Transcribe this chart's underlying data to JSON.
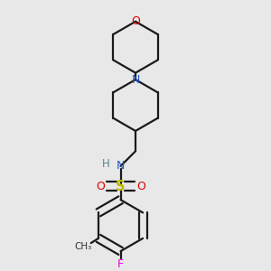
{
  "bg_color": "#e8e8e8",
  "bond_color": "#1a1a1a",
  "N_color": "#2255cc",
  "O_color": "#dd0000",
  "S_color": "#bbbb00",
  "F_color": "#ee00ee",
  "H_color": "#558888",
  "Me_color": "#333333",
  "line_width": 1.6,
  "fig_w": 3.0,
  "fig_h": 3.0,
  "dpi": 100,
  "xlim": [
    0.15,
    0.85
  ],
  "ylim": [
    0.02,
    0.98
  ]
}
